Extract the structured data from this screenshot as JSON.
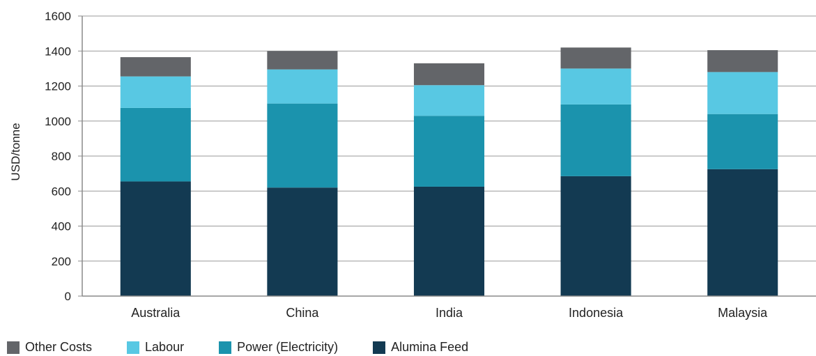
{
  "chart_data": {
    "type": "bar",
    "stacked": true,
    "categories": [
      "Australia",
      "China",
      "India",
      "Indonesia",
      "Malaysia"
    ],
    "series": [
      {
        "name": "Alumina Feed",
        "color": "#133a52",
        "values": [
          655,
          620,
          625,
          685,
          725
        ]
      },
      {
        "name": "Power (Electricity)",
        "color": "#1b93ad",
        "values": [
          420,
          480,
          405,
          410,
          315
        ]
      },
      {
        "name": "Labour",
        "color": "#58c8e3",
        "values": [
          180,
          195,
          175,
          205,
          240
        ]
      },
      {
        "name": "Other Costs",
        "color": "#636569",
        "values": [
          110,
          105,
          125,
          120,
          125
        ]
      }
    ],
    "legend_order": [
      "Other Costs",
      "Labour",
      "Power (Electricity)",
      "Alumina Feed"
    ],
    "ylabel": "USD/tonne",
    "xlabel": "",
    "title": "",
    "ylim": [
      0,
      1600
    ],
    "yticks": [
      0,
      200,
      400,
      600,
      800,
      1000,
      1200,
      1400,
      1600
    ],
    "grid": true,
    "legend_position": "bottom"
  }
}
